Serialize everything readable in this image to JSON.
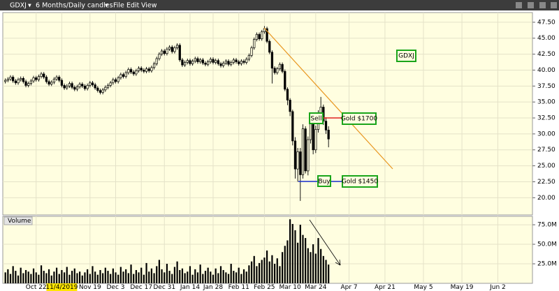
{
  "header": {
    "symbol": "GDXJ",
    "period": "6 Months/Daily candles",
    "menus": [
      "File",
      "Edit",
      "View"
    ]
  },
  "chart_data": {
    "type": "candlestick",
    "annotations": [
      "GDXJ",
      "Sell",
      "Gold $1700",
      "Buy",
      "Gold $1450"
    ],
    "up_fill": "#fffee0",
    "down_fill": "#000000",
    "candle_color": "#000000",
    "grid": true,
    "xlim": [
      -1,
      205.5
    ],
    "xticks": [
      {
        "value": 12,
        "label": "Oct 22"
      },
      {
        "value": 22,
        "label": "11/4/2019"
      },
      {
        "value": 33,
        "label": "Nov 19"
      },
      {
        "value": 43,
        "label": "Dec 3"
      },
      {
        "value": 53,
        "label": "Dec 17"
      },
      {
        "value": 62,
        "label": "Dec 31"
      },
      {
        "value": 72,
        "label": "Jan 14"
      },
      {
        "value": 81,
        "label": "Jan 28"
      },
      {
        "value": 91,
        "label": "Feb 11"
      },
      {
        "value": 101,
        "label": "Feb 25"
      },
      {
        "value": 111,
        "label": "Mar 10"
      },
      {
        "value": 121,
        "label": "Mar 24"
      },
      {
        "value": 134,
        "label": "Apr 7"
      },
      {
        "value": 148,
        "label": "Apr 21"
      },
      {
        "value": 163,
        "label": "May 5"
      },
      {
        "value": 178,
        "label": "May 19"
      },
      {
        "value": 192,
        "label": "Jun 2"
      }
    ],
    "highlighted_xtick": 1,
    "ylim": [
      17.3,
      48.8
    ],
    "yticks": [
      {
        "value": 20,
        "label": "20.00"
      },
      {
        "value": 22.5,
        "label": "22.50"
      },
      {
        "value": 25,
        "label": "25.00"
      },
      {
        "value": 27.5,
        "label": "27.50"
      },
      {
        "value": 30,
        "label": "30.00"
      },
      {
        "value": 32.5,
        "label": "32.50"
      },
      {
        "value": 35,
        "label": "35.00"
      },
      {
        "value": 37.5,
        "label": "37.50"
      },
      {
        "value": 40,
        "label": "40.00"
      },
      {
        "value": 42.5,
        "label": "42.50"
      },
      {
        "value": 45,
        "label": "45.00"
      },
      {
        "value": 47.5,
        "label": "47.50"
      }
    ],
    "candles": [
      [
        38.2,
        38.7,
        37.9,
        38.4
      ],
      [
        38.4,
        38.9,
        38.1,
        38.6
      ],
      [
        38.6,
        39.2,
        38.3,
        38.9
      ],
      [
        38.9,
        39.2,
        38.0,
        38.3
      ],
      [
        38.3,
        38.6,
        37.7,
        38.0
      ],
      [
        38.0,
        38.8,
        37.7,
        38.5
      ],
      [
        38.5,
        39.0,
        38.2,
        38.7
      ],
      [
        38.7,
        39.0,
        37.9,
        38.2
      ],
      [
        38.2,
        38.5,
        37.3,
        37.6
      ],
      [
        37.6,
        38.2,
        37.3,
        37.9
      ],
      [
        37.9,
        38.6,
        37.6,
        38.3
      ],
      [
        38.3,
        39.1,
        38.0,
        38.8
      ],
      [
        38.8,
        39.1,
        38.2,
        38.5
      ],
      [
        38.5,
        39.3,
        38.2,
        39.0
      ],
      [
        39.0,
        39.7,
        38.7,
        39.4
      ],
      [
        39.4,
        39.7,
        38.6,
        38.9
      ],
      [
        38.9,
        39.2,
        37.9,
        38.2
      ],
      [
        38.2,
        38.5,
        37.5,
        37.8
      ],
      [
        37.8,
        38.4,
        37.5,
        38.1
      ],
      [
        38.1,
        38.9,
        37.8,
        38.6
      ],
      [
        38.6,
        39.2,
        38.3,
        38.9
      ],
      [
        38.9,
        39.2,
        38.1,
        38.4
      ],
      [
        38.4,
        38.7,
        37.3,
        37.6
      ],
      [
        37.6,
        37.9,
        36.9,
        37.2
      ],
      [
        37.2,
        37.8,
        36.9,
        37.5
      ],
      [
        37.5,
        38.2,
        37.2,
        37.9
      ],
      [
        37.9,
        38.2,
        37.0,
        37.3
      ],
      [
        37.3,
        37.6,
        36.7,
        37.0
      ],
      [
        37.0,
        37.7,
        36.7,
        37.4
      ],
      [
        37.4,
        38.1,
        37.1,
        37.8
      ],
      [
        37.8,
        38.1,
        37.2,
        37.5
      ],
      [
        37.5,
        37.8,
        36.8,
        37.1
      ],
      [
        37.1,
        37.9,
        36.8,
        37.6
      ],
      [
        37.6,
        38.3,
        37.3,
        38.0
      ],
      [
        38.0,
        38.3,
        37.4,
        37.7
      ],
      [
        37.7,
        38.0,
        36.9,
        37.2
      ],
      [
        37.2,
        37.5,
        36.5,
        36.8
      ],
      [
        36.8,
        37.1,
        36.2,
        36.5
      ],
      [
        36.5,
        37.2,
        36.2,
        36.9
      ],
      [
        36.9,
        37.6,
        36.6,
        37.3
      ],
      [
        37.3,
        37.9,
        37.0,
        37.6
      ],
      [
        37.6,
        38.3,
        37.3,
        38.0
      ],
      [
        38.0,
        38.8,
        37.7,
        38.5
      ],
      [
        38.5,
        38.8,
        37.9,
        38.2
      ],
      [
        38.2,
        39.1,
        37.9,
        38.8
      ],
      [
        38.8,
        39.6,
        38.5,
        39.3
      ],
      [
        39.3,
        39.6,
        38.7,
        39.0
      ],
      [
        39.0,
        39.9,
        38.7,
        39.6
      ],
      [
        39.6,
        40.4,
        39.3,
        40.1
      ],
      [
        40.1,
        40.4,
        39.4,
        39.7
      ],
      [
        39.7,
        40.0,
        39.1,
        39.4
      ],
      [
        39.4,
        40.2,
        39.1,
        39.9
      ],
      [
        39.9,
        40.6,
        39.6,
        40.3
      ],
      [
        40.3,
        40.6,
        39.7,
        40.0
      ],
      [
        40.0,
        40.3,
        39.5,
        39.8
      ],
      [
        39.8,
        40.5,
        39.5,
        40.2
      ],
      [
        40.2,
        40.5,
        39.6,
        39.9
      ],
      [
        39.9,
        40.7,
        39.6,
        40.4
      ],
      [
        40.4,
        41.3,
        40.1,
        41.0
      ],
      [
        41.0,
        42.1,
        40.7,
        41.8
      ],
      [
        41.8,
        42.8,
        41.5,
        42.5
      ],
      [
        42.5,
        43.3,
        42.2,
        43.0
      ],
      [
        43.0,
        43.3,
        42.3,
        42.6
      ],
      [
        42.6,
        43.6,
        42.3,
        43.3
      ],
      [
        43.3,
        43.9,
        43.0,
        43.6
      ],
      [
        43.6,
        43.9,
        42.6,
        42.9
      ],
      [
        42.9,
        43.8,
        42.6,
        43.5
      ],
      [
        43.5,
        44.2,
        43.2,
        43.9
      ],
      [
        43.9,
        44.2,
        41.3,
        41.6
      ],
      [
        41.6,
        41.9,
        40.5,
        40.8
      ],
      [
        40.8,
        41.5,
        40.5,
        41.2
      ],
      [
        41.2,
        41.8,
        40.9,
        41.5
      ],
      [
        41.5,
        41.8,
        40.7,
        41.0
      ],
      [
        41.0,
        41.7,
        40.7,
        41.4
      ],
      [
        41.4,
        42.1,
        41.1,
        41.8
      ],
      [
        41.8,
        42.1,
        41.0,
        41.3
      ],
      [
        41.3,
        41.9,
        41.0,
        41.6
      ],
      [
        41.6,
        41.9,
        40.8,
        41.1
      ],
      [
        41.1,
        41.4,
        40.6,
        40.9
      ],
      [
        40.9,
        41.6,
        40.6,
        41.3
      ],
      [
        41.3,
        42.0,
        41.0,
        41.7
      ],
      [
        41.7,
        42.0,
        40.9,
        41.2
      ],
      [
        41.2,
        41.8,
        40.9,
        41.5
      ],
      [
        41.5,
        41.8,
        40.7,
        41.0
      ],
      [
        41.0,
        41.3,
        40.4,
        40.7
      ],
      [
        40.7,
        41.4,
        40.4,
        41.1
      ],
      [
        41.1,
        41.7,
        40.8,
        41.4
      ],
      [
        41.4,
        41.7,
        40.6,
        40.9
      ],
      [
        40.9,
        41.5,
        40.6,
        41.2
      ],
      [
        41.2,
        41.9,
        40.9,
        41.6
      ],
      [
        41.6,
        41.9,
        41.0,
        41.3
      ],
      [
        41.3,
        41.6,
        40.7,
        41.0
      ],
      [
        41.0,
        41.7,
        40.7,
        41.4
      ],
      [
        41.4,
        41.7,
        40.9,
        41.2
      ],
      [
        41.2,
        42.0,
        40.9,
        41.7
      ],
      [
        41.7,
        42.6,
        41.4,
        42.3
      ],
      [
        42.3,
        43.8,
        42.0,
        43.5
      ],
      [
        43.5,
        45.1,
        43.2,
        44.8
      ],
      [
        44.8,
        45.9,
        44.5,
        45.6
      ],
      [
        45.6,
        45.9,
        44.6,
        44.9
      ],
      [
        44.9,
        46.3,
        44.6,
        46.0
      ],
      [
        46.0,
        46.9,
        45.7,
        46.5
      ],
      [
        46.5,
        46.8,
        44.2,
        44.5
      ],
      [
        44.5,
        44.8,
        42.5,
        42.8
      ],
      [
        42.8,
        43.1,
        37.9,
        40.3
      ],
      [
        40.3,
        40.6,
        39.3,
        39.6
      ],
      [
        39.6,
        40.5,
        39.3,
        40.2
      ],
      [
        40.2,
        41.2,
        39.9,
        40.9
      ],
      [
        40.9,
        41.2,
        39.5,
        39.8
      ],
      [
        39.8,
        40.1,
        36.7,
        37.0
      ],
      [
        37.0,
        37.3,
        34.5,
        35.3
      ],
      [
        35.3,
        35.6,
        32.8,
        33.5
      ],
      [
        33.5,
        33.8,
        28.2,
        28.9
      ],
      [
        28.9,
        29.5,
        23.0,
        24.5
      ],
      [
        24.5,
        27.8,
        22.5,
        27.2
      ],
      [
        27.2,
        27.8,
        19.5,
        23.6
      ],
      [
        23.6,
        31.5,
        23.0,
        30.8
      ],
      [
        30.8,
        31.2,
        23.8,
        24.2
      ],
      [
        24.2,
        29.6,
        23.5,
        29.1
      ],
      [
        29.1,
        32.5,
        28.5,
        31.9
      ],
      [
        31.9,
        32.3,
        26.8,
        27.5
      ],
      [
        27.5,
        31.3,
        27.0,
        30.7
      ],
      [
        30.7,
        33.7,
        30.2,
        33.1
      ],
      [
        33.1,
        35.8,
        32.5,
        34.2
      ],
      [
        34.2,
        34.6,
        31.4,
        32.0
      ],
      [
        32.0,
        32.6,
        30.0,
        30.6
      ],
      [
        30.6,
        31.2,
        27.9,
        29.2
      ]
    ],
    "volume": {
      "title": "Volume",
      "color": "#000000",
      "ylim": [
        0,
        84
      ],
      "yticks": [
        {
          "value": 25,
          "label": "25.0M"
        },
        {
          "value": 50,
          "label": "50.0M"
        },
        {
          "value": 75,
          "label": "75.0M"
        }
      ],
      "values": [
        14,
        18,
        12,
        22,
        16,
        10,
        20,
        13,
        17,
        15,
        12,
        19,
        14,
        11,
        23,
        16,
        13,
        18,
        10,
        15,
        20,
        12,
        17,
        14,
        21,
        11,
        16,
        19,
        13,
        15,
        10,
        14,
        18,
        12,
        22,
        15,
        11,
        17,
        13,
        20,
        16,
        12,
        19,
        14,
        11,
        21,
        15,
        18,
        13,
        24,
        12,
        17,
        14,
        20,
        11,
        26,
        15,
        19,
        13,
        22,
        30,
        18,
        14,
        25,
        16,
        12,
        21,
        28,
        17,
        19,
        13,
        15,
        22,
        11,
        18,
        14,
        24,
        12,
        16,
        20,
        15,
        11,
        19,
        13,
        22,
        17,
        14,
        12,
        25,
        16,
        14,
        20,
        12,
        18,
        15,
        23,
        28,
        35,
        22,
        26,
        30,
        33,
        42,
        28,
        36,
        25,
        32,
        22,
        40,
        48,
        55,
        82,
        76,
        68,
        52,
        75,
        62,
        58,
        45,
        40,
        50,
        38,
        58,
        44,
        35,
        30,
        24
      ]
    }
  }
}
